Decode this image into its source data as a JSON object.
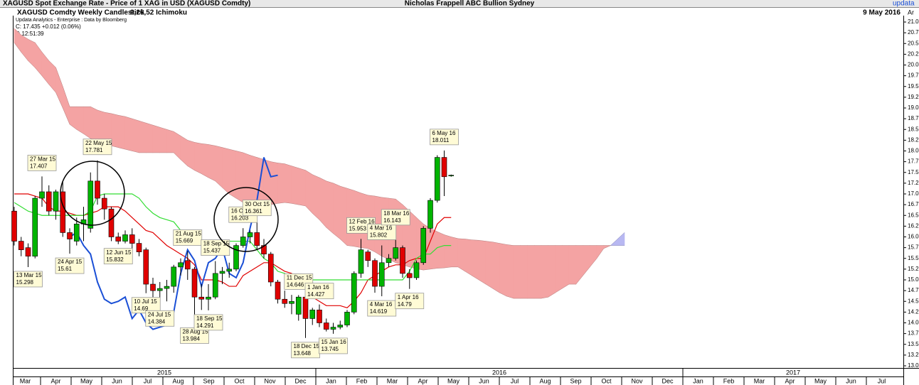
{
  "header": {
    "top_left": "XAGUSD Spot Exchange Rate - Price of 1 XAG in USD (XAGUSD Comdty)",
    "top_center": "Nicholas Frappell ABC Bullion Sydney",
    "top_right": "updata",
    "chart_name": "XAGUSD Comdty Weekly Candlestick",
    "indicator": "9,26,52 Ichimoku",
    "date": "9 May 2016",
    "source": "Updata Analytics - Enterprise : Data by Bloomberg",
    "change": "C: 17.435  +0.012 (0.06%)",
    "time": "T: 12:51:39",
    "axis_corner": "Ar"
  },
  "chart_data": {
    "type": "candlestick",
    "months": [
      "Mar",
      "Apr",
      "May",
      "Jun",
      "Jul",
      "Aug",
      "Sep",
      "Oct",
      "Nov",
      "Dec",
      "Jan",
      "Feb",
      "Mar",
      "Apr",
      "May",
      "Jun",
      "Jul",
      "Aug",
      "Sep",
      "Oct",
      "Nov",
      "Dec",
      "Jan",
      "Feb",
      "Mar",
      "Apr",
      "May",
      "Jun",
      "Jul"
    ],
    "years": [
      "2015",
      "2016",
      "2017"
    ],
    "candles": {
      "open": [
        16.6,
        15.9,
        15.75,
        15.55,
        16.9,
        17.05,
        16.6,
        17.05,
        16.1,
        15.9,
        16.3,
        16.2,
        17.3,
        16.9,
        16.65,
        16.0,
        15.9,
        16.05,
        15.85,
        15.7,
        14.9,
        14.75,
        14.8,
        14.85,
        15.3,
        15.45,
        15.25,
        14.6,
        14.55,
        14.6,
        15.15,
        15.2,
        15.25,
        15.8,
        16.0,
        16.1,
        15.8,
        15.6,
        14.95,
        14.55,
        14.45,
        14.2,
        14.6,
        14.1,
        14.3,
        14.0,
        13.85,
        13.9,
        13.95,
        14.25,
        15.15,
        15.65,
        15.45,
        14.85,
        15.4,
        15.5,
        15.75,
        15.15,
        15.05,
        15.4,
        16.2,
        16.85,
        17.85,
        17.43
      ],
      "high": [
        16.7,
        16.0,
        15.85,
        16.95,
        17.407,
        17.2,
        17.1,
        17.3,
        16.2,
        16.45,
        16.7,
        17.5,
        17.781,
        17.0,
        16.7,
        16.1,
        16.15,
        16.2,
        15.95,
        15.75,
        15.05,
        14.95,
        15.0,
        15.35,
        15.5,
        15.669,
        15.3,
        14.9,
        14.9,
        15.437,
        15.3,
        15.4,
        15.85,
        16.203,
        16.15,
        16.361,
        15.95,
        15.65,
        15.0,
        14.75,
        14.65,
        14.646,
        14.65,
        14.35,
        14.427,
        14.1,
        14.0,
        14.05,
        14.3,
        15.2,
        15.953,
        15.7,
        15.5,
        15.802,
        15.6,
        16.143,
        15.8,
        15.25,
        15.45,
        16.25,
        16.9,
        17.9,
        18.011,
        17.45
      ],
      "low": [
        15.8,
        15.55,
        15.298,
        15.5,
        16.7,
        16.5,
        16.4,
        16.0,
        15.61,
        15.8,
        15.9,
        16.1,
        16.75,
        16.4,
        15.9,
        15.832,
        15.85,
        15.65,
        15.55,
        14.69,
        14.6,
        14.384,
        14.5,
        14.7,
        15.1,
        15.0,
        13.984,
        14.3,
        14.291,
        14.55,
        14.9,
        15.05,
        15.2,
        15.75,
        15.85,
        15.7,
        15.5,
        14.85,
        14.45,
        14.35,
        14.2,
        14.05,
        13.648,
        13.95,
        13.9,
        13.8,
        13.745,
        13.85,
        13.9,
        14.2,
        15.05,
        15.3,
        14.7,
        14.619,
        15.3,
        15.45,
        15.05,
        14.79,
        15.0,
        15.35,
        16.1,
        16.8,
        16.95,
        17.4
      ],
      "close": [
        15.9,
        15.7,
        15.55,
        16.9,
        17.05,
        16.6,
        17.05,
        16.1,
        15.95,
        16.3,
        16.4,
        17.3,
        16.9,
        16.65,
        16.0,
        15.9,
        16.05,
        15.85,
        15.65,
        14.9,
        14.75,
        14.8,
        14.85,
        15.3,
        15.4,
        15.25,
        14.6,
        14.55,
        14.6,
        15.15,
        15.2,
        15.25,
        15.8,
        16.0,
        16.1,
        15.8,
        15.6,
        14.95,
        14.55,
        14.45,
        14.5,
        14.6,
        14.1,
        14.3,
        14.0,
        13.85,
        13.9,
        13.95,
        14.25,
        15.15,
        15.7,
        15.45,
        14.85,
        15.4,
        15.5,
        15.75,
        15.15,
        15.05,
        15.4,
        16.2,
        16.85,
        17.85,
        17.4,
        17.435
      ]
    },
    "up_color": "#00b400",
    "down_color": "#e00000",
    "tenkan": {
      "color": "#e00000",
      "values": [
        17.0,
        17.0,
        17.0,
        16.95,
        16.9,
        16.7,
        16.6,
        16.6,
        16.55,
        16.5,
        16.5,
        16.55,
        16.6,
        16.7,
        16.7,
        16.7,
        16.6,
        16.45,
        16.3,
        16.15,
        16.1,
        15.95,
        15.8,
        15.7,
        15.6,
        15.5,
        15.35,
        15.0,
        15.0,
        15.0,
        14.95,
        14.85,
        14.85,
        15.1,
        15.2,
        15.3,
        15.4,
        15.4,
        15.3,
        15.2,
        15.15,
        15.0,
        14.8,
        14.6,
        14.5,
        14.4,
        14.4,
        14.4,
        14.35,
        14.5,
        14.7,
        15.0,
        15.1,
        15.2,
        15.3,
        15.35,
        15.35,
        15.45,
        15.5,
        15.5,
        15.9,
        16.3,
        16.45,
        16.45
      ]
    },
    "kijun": {
      "color": "#33dd33",
      "values": [
        16.8,
        16.7,
        16.6,
        16.55,
        16.5,
        16.5,
        16.5,
        16.5,
        16.5,
        16.5,
        16.5,
        16.6,
        16.95,
        17.0,
        17.0,
        17.0,
        17.0,
        17.0,
        16.9,
        16.7,
        16.55,
        16.45,
        16.4,
        16.35,
        16.15,
        15.95,
        15.9,
        15.9,
        15.9,
        15.9,
        15.9,
        15.9,
        15.9,
        15.9,
        15.9,
        15.7,
        15.5,
        15.4,
        15.2,
        15.15,
        15.05,
        15.0,
        15.0,
        15.0,
        15.0,
        15.0,
        15.0,
        15.0,
        15.0,
        15.0,
        15.0,
        15.0,
        15.0,
        15.0,
        15.0,
        15.0,
        15.0,
        15.2,
        15.5,
        15.6,
        15.6,
        15.75,
        15.8,
        15.8
      ]
    },
    "chikou": {
      "color": "#1a4fd6",
      "values": [
        null,
        null,
        null,
        null,
        null,
        null,
        null,
        null,
        16.0,
        16.1,
        15.8,
        15.6,
        14.95,
        14.55,
        14.45,
        14.5,
        14.6,
        14.1,
        14.3,
        14.0,
        13.85,
        13.9,
        13.95,
        14.25,
        15.15,
        15.7,
        15.45,
        14.85,
        15.4,
        15.5,
        15.75,
        15.15,
        15.05,
        15.4,
        16.2,
        16.85,
        17.85,
        17.4,
        17.435
      ]
    },
    "span_a": [
      20.52,
      20.3,
      20.1,
      19.94,
      19.75,
      19.55,
      19.36,
      19.0,
      18.62,
      18.5,
      18.4,
      18.29,
      18.23,
      18.17,
      18.12,
      18.08,
      18.04,
      18.0,
      17.96,
      17.96,
      17.96,
      17.96,
      17.96,
      17.96,
      17.8,
      17.65,
      17.55,
      17.47,
      17.38,
      17.3,
      17.15,
      17.0,
      16.9,
      16.8,
      16.77,
      16.75,
      16.72,
      16.75,
      16.78,
      16.8,
      16.78,
      16.75,
      16.72,
      16.55,
      16.4,
      16.22,
      16.08,
      15.95,
      15.8,
      15.78,
      15.75,
      15.73,
      15.65,
      15.55,
      15.48,
      15.4,
      15.35,
      15.3,
      15.26,
      15.23,
      15.25,
      15.27,
      15.28,
      15.3,
      15.3,
      15.2,
      15.1,
      15.0,
      14.9,
      14.8,
      14.7,
      14.62,
      14.57,
      14.57,
      14.57,
      14.57,
      14.57,
      14.6,
      14.7,
      14.8,
      14.9,
      14.9,
      15.1,
      15.3,
      15.5,
      15.73,
      15.8,
      15.95,
      16.1
    ],
    "span_b": [
      20.85,
      20.7,
      20.6,
      20.52,
      20.3,
      20.1,
      19.94,
      19.5,
      19.03,
      19.03,
      19.03,
      19.03,
      18.95,
      18.9,
      18.87,
      18.83,
      18.8,
      18.75,
      18.7,
      18.65,
      18.6,
      18.55,
      18.5,
      18.45,
      18.35,
      18.25,
      18.2,
      18.17,
      18.15,
      18.12,
      18.08,
      18.04,
      18.0,
      17.96,
      17.9,
      17.85,
      17.8,
      17.75,
      17.72,
      17.7,
      17.65,
      17.6,
      17.55,
      17.45,
      17.38,
      17.3,
      17.25,
      17.18,
      17.13,
      17.08,
      17.02,
      16.97,
      16.95,
      16.92,
      16.9,
      16.88,
      16.75,
      16.6,
      16.45,
      16.3,
      16.2,
      16.12,
      16.05,
      16.0,
      15.96,
      15.95,
      15.93,
      15.92,
      15.9,
      15.88,
      15.85,
      15.82,
      15.8,
      15.8,
      15.8,
      15.8,
      15.8,
      15.8,
      15.8,
      15.8,
      15.8,
      15.8,
      15.8,
      15.8,
      15.8,
      15.8,
      15.8,
      15.8,
      15.8
    ],
    "cloud_down_color": "#f4a3a3",
    "cloud_up_color": "#b8b8f2",
    "annotations": [
      {
        "date": "13 Mar 15",
        "value": 15.298
      },
      {
        "date": "27 Mar 15",
        "value": 17.407
      },
      {
        "date": "24 Apr 15",
        "value": 15.61
      },
      {
        "date": "22 May 15",
        "value": 17.781
      },
      {
        "date": "12 Jun 15",
        "value": 15.832
      },
      {
        "date": "10 Jul 15",
        "value": 14.69
      },
      {
        "date": "24 Jul 15",
        "value": 14.384
      },
      {
        "date": "21 Aug 15",
        "value": 15.669
      },
      {
        "date": "28 Aug 15",
        "value": 13.984
      },
      {
        "date": "18 Sep 15",
        "value": 15.437
      },
      {
        "date": "18 Sep 15",
        "value": 14.291
      },
      {
        "date": "16 Oct 15",
        "value": 16.203
      },
      {
        "date": "30 Oct 15",
        "value": 16.361
      },
      {
        "date": "11 Dec 15",
        "value": 14.646
      },
      {
        "date": "18 Dec 15",
        "value": 13.648
      },
      {
        "date": "1 Jan 16",
        "value": 14.427
      },
      {
        "date": "15 Jan 16",
        "value": 13.745
      },
      {
        "date": "12 Feb 16",
        "value": 15.953
      },
      {
        "date": "4 Mar 16",
        "value": 15.802
      },
      {
        "date": "4 Mar 16",
        "value": 14.619
      },
      {
        "date": "18 Mar 16",
        "value": 16.143
      },
      {
        "date": "1 Apr 16",
        "value": 14.79
      },
      {
        "date": "6 May 16",
        "value": 18.011
      }
    ],
    "ylim": [
      13,
      21
    ],
    "yticks": [
      {
        "value": 13,
        "label": "13.00"
      },
      {
        "value": 13.25,
        "label": "13.25"
      },
      {
        "value": 13.5,
        "label": "13.50"
      },
      {
        "value": 13.75,
        "label": "13.75"
      },
      {
        "value": 14,
        "label": "14.00"
      },
      {
        "value": 14.25,
        "label": "14.25"
      },
      {
        "value": 14.5,
        "label": "14.50"
      },
      {
        "value": 14.75,
        "label": "14.75"
      },
      {
        "value": 15,
        "label": "15.00"
      },
      {
        "value": 15.25,
        "label": "15.25"
      },
      {
        "value": 15.5,
        "label": "15.50"
      },
      {
        "value": 15.75,
        "label": "15.75"
      },
      {
        "value": 16,
        "label": "16.00"
      },
      {
        "value": 16.25,
        "label": "16.25"
      },
      {
        "value": 16.5,
        "label": "16.50"
      },
      {
        "value": 16.75,
        "label": "16.75"
      },
      {
        "value": 17,
        "label": "17.00"
      },
      {
        "value": 17.25,
        "label": "17.25"
      },
      {
        "value": 17.5,
        "label": "17.50"
      },
      {
        "value": 17.75,
        "label": "17.75"
      },
      {
        "value": 18,
        "label": "18.00"
      },
      {
        "value": 18.25,
        "label": "18.25"
      },
      {
        "value": 18.5,
        "label": "18.50"
      },
      {
        "value": 18.75,
        "label": "18.75"
      },
      {
        "value": 19,
        "label": "19.00"
      },
      {
        "value": 19.25,
        "label": "19.25"
      },
      {
        "value": 19.5,
        "label": "19.50"
      },
      {
        "value": 19.75,
        "label": "19.75"
      },
      {
        "value": 20,
        "label": "20.00"
      },
      {
        "value": 20.25,
        "label": "20.25"
      },
      {
        "value": 20.5,
        "label": "20.50"
      },
      {
        "value": 20.75,
        "label": "20.75"
      },
      {
        "value": 21,
        "label": "21.00"
      }
    ],
    "grid": false
  }
}
